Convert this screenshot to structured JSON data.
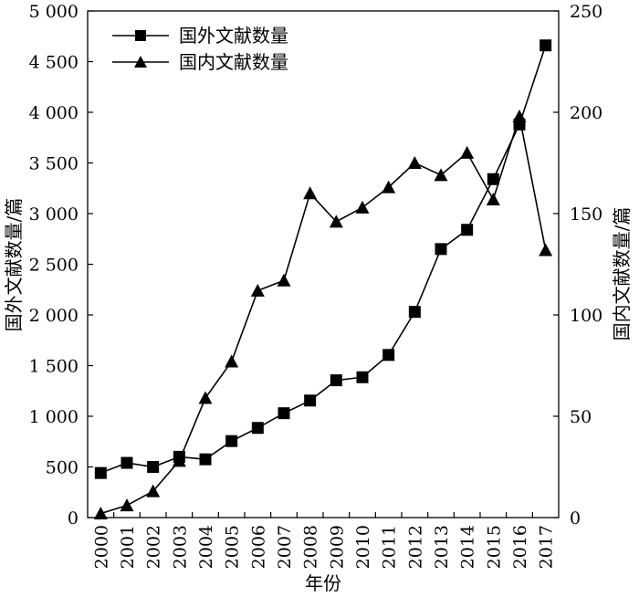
{
  "chart_data": {
    "type": "line",
    "title": "",
    "xlabel": "年份",
    "ylabel_left": "国外文献数量/篇",
    "ylabel_right": "国内文献数量/篇",
    "x": [
      2000,
      2001,
      2002,
      2003,
      2004,
      2005,
      2006,
      2007,
      2008,
      2009,
      2010,
      2011,
      2012,
      2013,
      2014,
      2015,
      2016,
      2017
    ],
    "x_tick_labels": [
      "2000",
      "2001",
      "2002",
      "2003",
      "2004",
      "2005",
      "2006",
      "2007",
      "2008",
      "2009",
      "2010",
      "2011",
      "2012",
      "2013",
      "2014",
      "2015",
      "2016",
      "2017"
    ],
    "ylim_left": [
      0,
      5000
    ],
    "ylim_right": [
      0,
      250
    ],
    "y_left_ticks": [
      0,
      500,
      1000,
      1500,
      2000,
      2500,
      3000,
      3500,
      4000,
      4500,
      5000
    ],
    "y_left_tick_labels": [
      "0",
      "500",
      "1 000",
      "1 500",
      "2 000",
      "2 500",
      "3 000",
      "3 500",
      "4 000",
      "4 500",
      "5 000"
    ],
    "y_right_ticks": [
      0,
      50,
      100,
      150,
      200,
      250
    ],
    "y_right_tick_labels": [
      "0",
      "50",
      "100",
      "150",
      "200",
      "250"
    ],
    "legend_position": "top-left",
    "grid": false,
    "series": [
      {
        "name": "国外文献数量",
        "axis": "left",
        "marker": "square",
        "color": "#000000",
        "values": [
          440,
          540,
          500,
          600,
          575,
          755,
          885,
          1030,
          1155,
          1355,
          1385,
          1605,
          2030,
          2650,
          2840,
          3340,
          3880,
          4660
        ]
      },
      {
        "name": "国内文献数量",
        "axis": "right",
        "marker": "triangle",
        "color": "#000000",
        "values": [
          2,
          6,
          13,
          28,
          59,
          77,
          112,
          117,
          160,
          146,
          153,
          163,
          175,
          169,
          180,
          157,
          198,
          132
        ]
      }
    ]
  }
}
